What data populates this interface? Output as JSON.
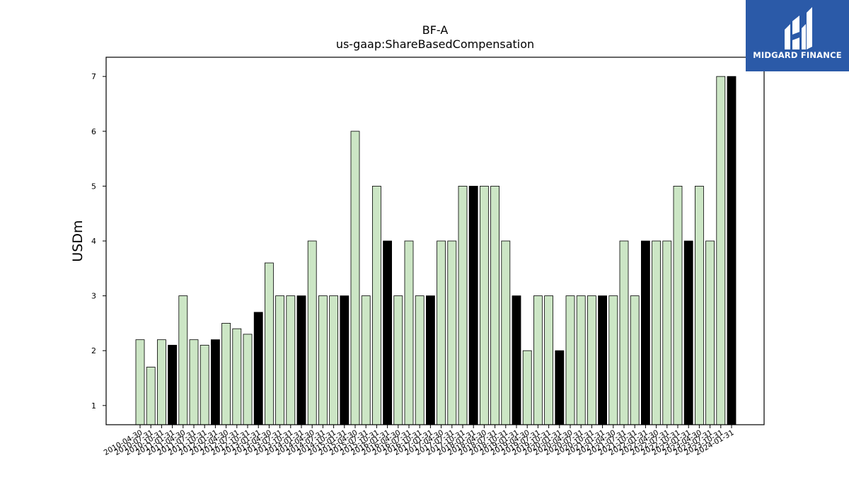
{
  "chart_data": {
    "type": "bar",
    "title": "BF-A",
    "subtitle": "us-gaap:ShareBasedCompensation",
    "xlabel": "",
    "ylabel": "USDm",
    "ylim": [
      0.65,
      7.35
    ],
    "yticks": [
      1,
      2,
      3,
      4,
      5,
      6,
      7
    ],
    "grid": false,
    "colors": {
      "quarter": "#cce6c5",
      "annual": "#000000",
      "edge": "#000000"
    },
    "categories": [
      "2010-04-30",
      "2010-07-31",
      "2010-10-31",
      "2011-01-31",
      "2011-04-30",
      "2011-07-31",
      "2011-10-31",
      "2012-01-31",
      "2012-04-30",
      "2012-07-31",
      "2012-10-31",
      "2013-01-31",
      "2013-04-30",
      "2013-07-31",
      "2013-10-31",
      "2014-01-31",
      "2014-04-30",
      "2014-07-31",
      "2014-10-31",
      "2015-01-31",
      "2015-04-30",
      "2015-07-31",
      "2015-10-31",
      "2016-01-31",
      "2016-04-30",
      "2016-07-31",
      "2016-10-31",
      "2017-01-31",
      "2017-04-30",
      "2017-07-31",
      "2017-10-31",
      "2018-01-31",
      "2018-04-30",
      "2018-07-31",
      "2018-10-31",
      "2019-01-31",
      "2019-04-30",
      "2019-07-31",
      "2019-10-31",
      "2020-01-31",
      "2020-04-30",
      "2020-07-31",
      "2020-10-31",
      "2021-01-31",
      "2021-04-30",
      "2021-07-31",
      "2021-10-31",
      "2022-01-31",
      "2022-04-30",
      "2022-07-31",
      "2022-10-31",
      "2023-01-31",
      "2023-04-30",
      "2023-07-31",
      "2023-10-31",
      "2024-01-31"
    ],
    "values": [
      2.2,
      1.7,
      2.2,
      2.1,
      3.0,
      2.2,
      2.1,
      2.2,
      2.5,
      2.4,
      2.3,
      2.7,
      3.6,
      3.0,
      3.0,
      3.0,
      4.0,
      3.0,
      3.0,
      3.0,
      6.0,
      3.0,
      5.0,
      4.0,
      3.0,
      4.0,
      3.0,
      3.0,
      4.0,
      4.0,
      5.0,
      5.0,
      5.0,
      5.0,
      4.0,
      3.0,
      2.0,
      3.0,
      3.0,
      2.0,
      3.0,
      3.0,
      3.0,
      3.0,
      3.0,
      4.0,
      3.0,
      4.0,
      4.0,
      4.0,
      5.0,
      4.0,
      5.0,
      4.0,
      7.0,
      7.0
    ],
    "annual": [
      false,
      false,
      false,
      true,
      false,
      false,
      false,
      true,
      false,
      false,
      false,
      true,
      false,
      false,
      false,
      true,
      false,
      false,
      false,
      true,
      false,
      false,
      false,
      true,
      false,
      false,
      false,
      true,
      false,
      false,
      false,
      true,
      false,
      false,
      false,
      true,
      false,
      false,
      false,
      true,
      false,
      false,
      false,
      true,
      false,
      false,
      false,
      true,
      false,
      false,
      false,
      true,
      false,
      false,
      false,
      true
    ]
  },
  "logo": {
    "text": "MIDGARD FINANCE",
    "background": "#2b5aa8"
  }
}
